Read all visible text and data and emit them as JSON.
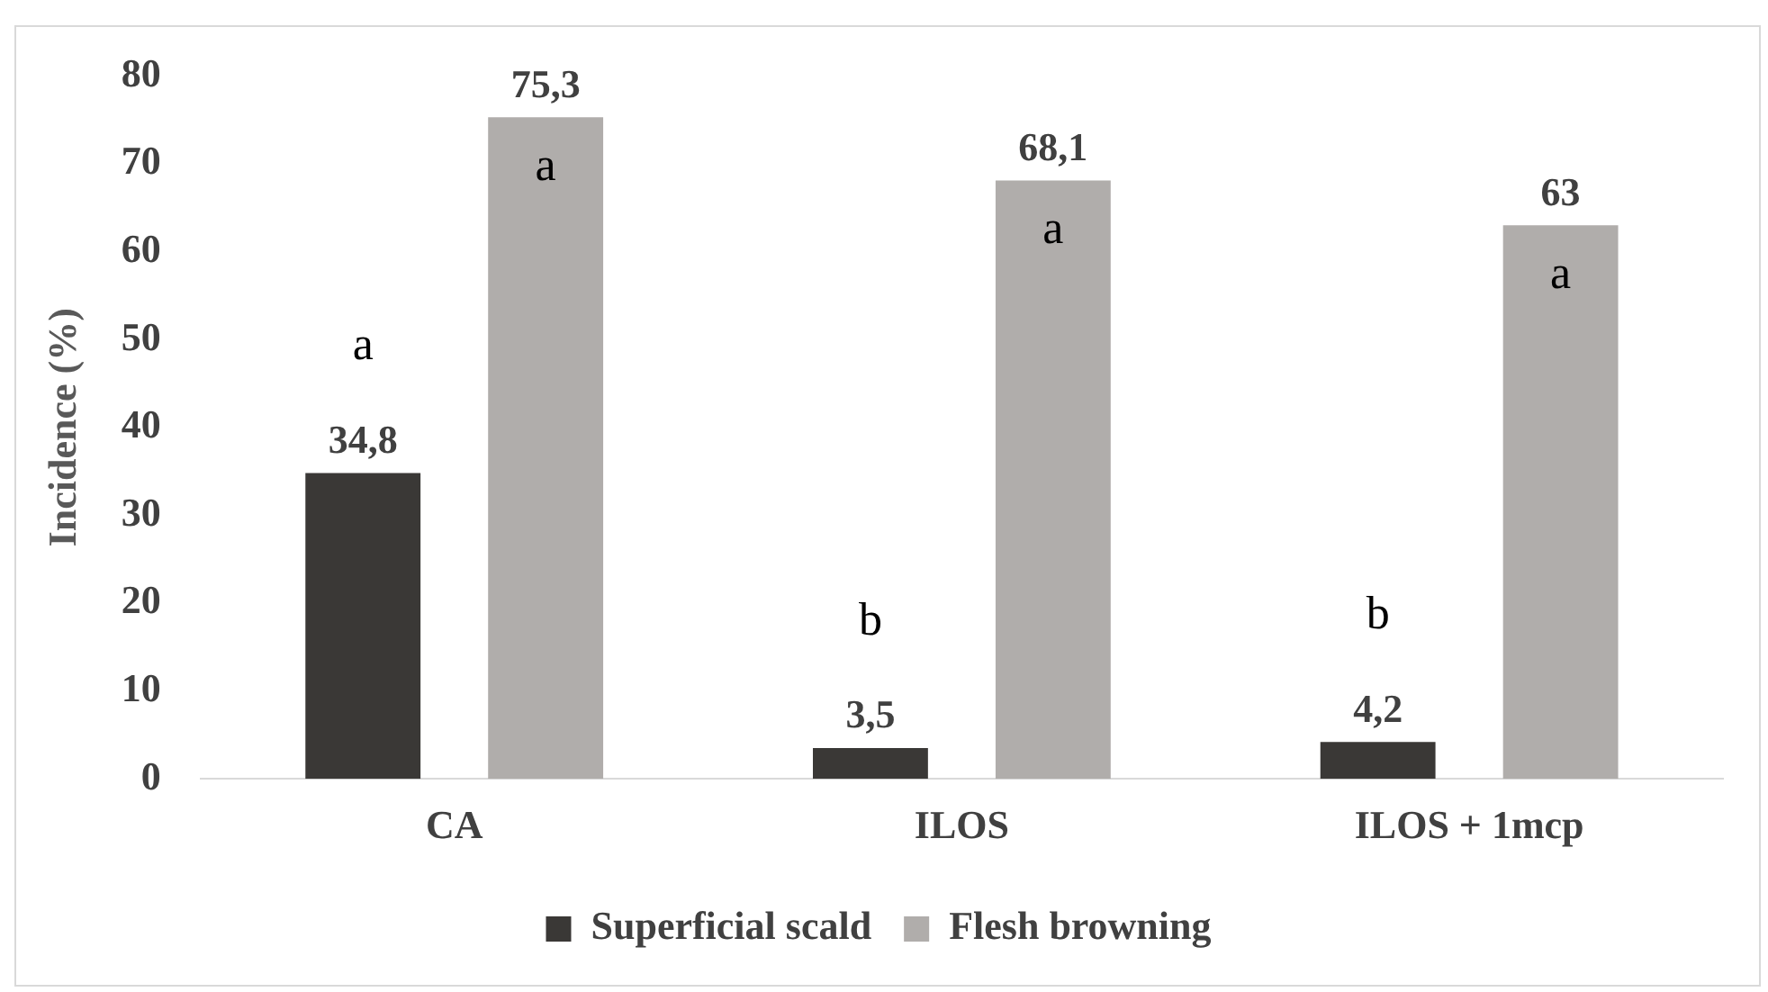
{
  "chart_data": {
    "type": "bar",
    "ylabel": "Incidence (%)",
    "categories": [
      "CA",
      "ILOS",
      "ILOS + 1mcp"
    ],
    "series": [
      {
        "name": "Superficial scald",
        "color": "#3a3836",
        "values": [
          34.8,
          3.5,
          4.2
        ],
        "value_labels": [
          "34,8",
          "3,5",
          "4,2"
        ]
      },
      {
        "name": "Flesh browning",
        "color": "#b0adab",
        "values": [
          75.3,
          68.1,
          63
        ],
        "value_labels": [
          "75,3",
          "68,1",
          "63"
        ]
      }
    ],
    "ylim": [
      0,
      80
    ],
    "yticks": [
      0,
      10,
      20,
      30,
      40,
      50,
      60,
      70,
      80
    ],
    "grid": false,
    "legend": "bottom",
    "annotations": [
      "a",
      "a",
      "b",
      "a",
      "b",
      "a"
    ]
  }
}
